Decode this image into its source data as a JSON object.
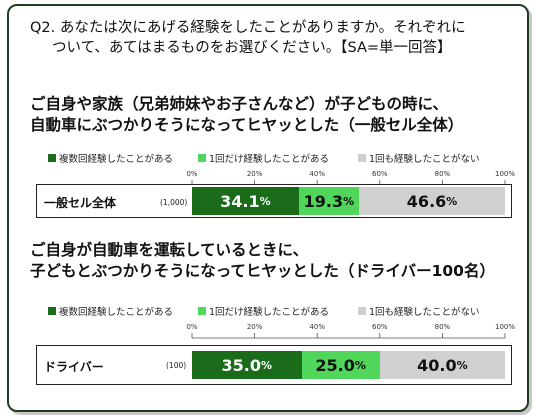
{
  "question": {
    "line1": "Q2. あなたは次にあげる経験をしたことがありますか。それぞれに",
    "line2": "ついて、あてはまるものをお選びください。【SA=単一回答】"
  },
  "section1": {
    "title_line1": "ご自身や家族（兄弟姉妹やお子さんなど）が子どもの時に、",
    "title_line2": "自動車にぶつかりそうになってヒヤッとした（一般セル全体）"
  },
  "section2": {
    "title_line1": "ご自身が自動車を運転しているときに、",
    "title_line2": "子どもとぶつかりそうになってヒヤッとした（ドライバー100名）"
  },
  "colors": {
    "dark_green": "#1a6b1a",
    "light_green": "#4fd65b",
    "light_gray": "#d0d0d0"
  },
  "chart_data": [
    {
      "type": "bar",
      "orientation": "horizontal-stacked-100",
      "x_ticks": [
        "0%",
        "20%",
        "40%",
        "60%",
        "80%",
        "100%"
      ],
      "xlim": [
        0,
        100
      ],
      "legend": [
        "複数回経験したことがある",
        "1回だけ経験したことがある",
        "1回も経験したことがない"
      ],
      "categories": [
        "一般セル全体"
      ],
      "counts": [
        "(1,000)"
      ],
      "series": [
        {
          "name": "複数回経験したことがある",
          "values": [
            34.1
          ],
          "labels": [
            "34.1"
          ]
        },
        {
          "name": "1回だけ経験したことがある",
          "values": [
            19.3
          ],
          "labels": [
            "19.3"
          ]
        },
        {
          "name": "1回も経験したことがない",
          "values": [
            46.6
          ],
          "labels": [
            "46.6"
          ]
        }
      ]
    },
    {
      "type": "bar",
      "orientation": "horizontal-stacked-100",
      "x_ticks": [
        "0%",
        "20%",
        "40%",
        "60%",
        "80%",
        "100%"
      ],
      "xlim": [
        0,
        100
      ],
      "legend": [
        "複数回経験したことがある",
        "1回だけ経験したことがある",
        "1回も経験したことがない"
      ],
      "categories": [
        "ドライバー"
      ],
      "counts": [
        "(100)"
      ],
      "series": [
        {
          "name": "複数回経験したことがある",
          "values": [
            35.0
          ],
          "labels": [
            "35.0"
          ]
        },
        {
          "name": "1回だけ経験したことがある",
          "values": [
            25.0
          ],
          "labels": [
            "25.0"
          ]
        },
        {
          "name": "1回も経験したことがない",
          "values": [
            40.0
          ],
          "labels": [
            "40.0"
          ]
        }
      ]
    }
  ],
  "unit": "%"
}
